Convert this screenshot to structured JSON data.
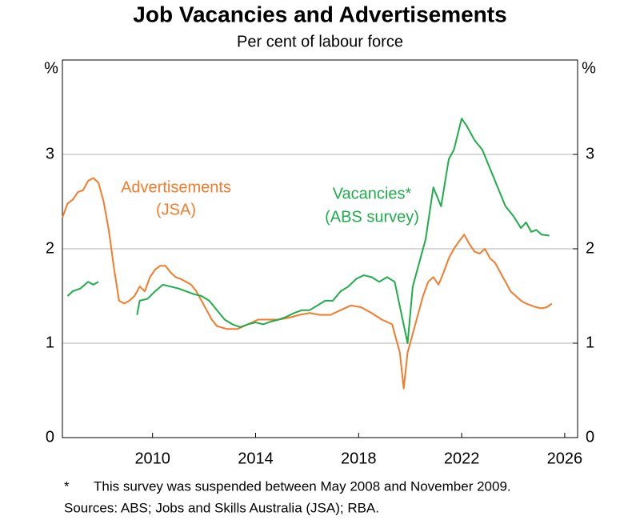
{
  "chart_data": {
    "type": "line",
    "title": "Job Vacancies and Advertisements",
    "subtitle": "Per cent of labour force",
    "y_unit": "%",
    "y2_unit": "%",
    "xlim": [
      2007,
      2027
    ],
    "xticks": [
      {
        "value": 2010.5,
        "label": "2010"
      },
      {
        "value": 2014.5,
        "label": "2014"
      },
      {
        "value": 2018.5,
        "label": "2018"
      },
      {
        "value": 2022.5,
        "label": "2022"
      },
      {
        "value": 2026.5,
        "label": "2026"
      }
    ],
    "ylim": [
      0,
      4
    ],
    "yticks": [
      0,
      1,
      2,
      3
    ],
    "y2lim": [
      0,
      4
    ],
    "y2ticks": [
      0,
      1,
      2,
      3
    ],
    "grid": true,
    "annotations": [
      "Advertisements",
      "(JSA)",
      "Vacancies*",
      "(ABS survey)"
    ],
    "notes": [
      "*",
      "This survey was suspended between May 2008 and November 2009.",
      "Sources: ABS; Jobs and Skills Australia (JSA); RBA."
    ],
    "series": [
      {
        "name": "Advertisements (JSA)",
        "color": "#f47b2a",
        "x": [
          2007.0,
          2007.2,
          2007.4,
          2007.6,
          2007.8,
          2008.0,
          2008.2,
          2008.4,
          2008.6,
          2008.8,
          2009.0,
          2009.2,
          2009.4,
          2009.6,
          2009.8,
          2010.0,
          2010.2,
          2010.4,
          2010.6,
          2010.8,
          2011.0,
          2011.2,
          2011.4,
          2011.6,
          2011.8,
          2012.0,
          2012.2,
          2012.4,
          2012.6,
          2012.8,
          2013.0,
          2013.4,
          2013.8,
          2014.2,
          2014.6,
          2015.0,
          2015.4,
          2015.8,
          2016.2,
          2016.6,
          2017.0,
          2017.4,
          2017.8,
          2018.2,
          2018.6,
          2019.0,
          2019.4,
          2019.8,
          2020.1,
          2020.25,
          2020.4,
          2020.6,
          2020.8,
          2021.0,
          2021.2,
          2021.4,
          2021.6,
          2021.8,
          2022.0,
          2022.2,
          2022.4,
          2022.6,
          2022.8,
          2023.0,
          2023.2,
          2023.4,
          2023.6,
          2023.8,
          2024.0,
          2024.2,
          2024.4,
          2024.6,
          2024.8,
          2025.0,
          2025.2,
          2025.4,
          2025.6,
          2025.8,
          2026.0
        ],
        "values": [
          2.33,
          2.48,
          2.52,
          2.6,
          2.62,
          2.72,
          2.75,
          2.7,
          2.5,
          2.2,
          1.8,
          1.45,
          1.42,
          1.45,
          1.5,
          1.6,
          1.55,
          1.7,
          1.78,
          1.82,
          1.82,
          1.75,
          1.7,
          1.68,
          1.65,
          1.62,
          1.55,
          1.45,
          1.35,
          1.25,
          1.18,
          1.15,
          1.15,
          1.2,
          1.25,
          1.25,
          1.25,
          1.27,
          1.3,
          1.32,
          1.3,
          1.3,
          1.35,
          1.4,
          1.38,
          1.32,
          1.25,
          1.2,
          0.9,
          0.52,
          0.9,
          1.1,
          1.3,
          1.5,
          1.65,
          1.7,
          1.62,
          1.75,
          1.9,
          2.0,
          2.08,
          2.15,
          2.05,
          1.97,
          1.95,
          2.0,
          1.9,
          1.85,
          1.75,
          1.65,
          1.55,
          1.5,
          1.45,
          1.42,
          1.4,
          1.38,
          1.37,
          1.38,
          1.42
        ]
      },
      {
        "name": "Vacancies (ABS survey)",
        "color": "#1fad4b",
        "x": [
          2007.2,
          2007.4,
          2007.7,
          2008.0,
          2008.2,
          2008.4,
          2009.1,
          2009.9,
          2010.0,
          2010.3,
          2010.6,
          2010.9,
          2011.2,
          2011.5,
          2011.8,
          2012.1,
          2012.4,
          2012.7,
          2013.0,
          2013.3,
          2013.6,
          2013.9,
          2014.2,
          2014.5,
          2014.8,
          2015.1,
          2015.4,
          2015.7,
          2016.0,
          2016.3,
          2016.6,
          2016.9,
          2017.2,
          2017.5,
          2017.8,
          2018.1,
          2018.4,
          2018.7,
          2019.0,
          2019.3,
          2019.6,
          2019.9,
          2020.4,
          2020.6,
          2020.9,
          2021.1,
          2021.4,
          2021.7,
          2022.0,
          2022.2,
          2022.5,
          2022.7,
          2023.0,
          2023.3,
          2023.6,
          2023.9,
          2024.2,
          2024.5,
          2024.8,
          2025.0,
          2025.2,
          2025.4,
          2025.6,
          2025.9
        ],
        "values": [
          1.5,
          1.55,
          1.58,
          1.65,
          1.62,
          1.65,
          null,
          1.3,
          1.45,
          1.47,
          1.55,
          1.62,
          1.6,
          1.58,
          1.55,
          1.52,
          1.5,
          1.45,
          1.35,
          1.25,
          1.2,
          1.17,
          1.2,
          1.22,
          1.2,
          1.23,
          1.25,
          1.28,
          1.32,
          1.35,
          1.35,
          1.4,
          1.45,
          1.45,
          1.55,
          1.6,
          1.68,
          1.72,
          1.7,
          1.65,
          1.7,
          1.65,
          1.0,
          1.6,
          1.9,
          2.1,
          2.65,
          2.45,
          2.95,
          3.05,
          3.38,
          3.3,
          3.15,
          3.05,
          2.85,
          2.65,
          2.45,
          2.35,
          2.22,
          2.28,
          2.18,
          2.2,
          2.15,
          2.14
        ]
      }
    ]
  }
}
